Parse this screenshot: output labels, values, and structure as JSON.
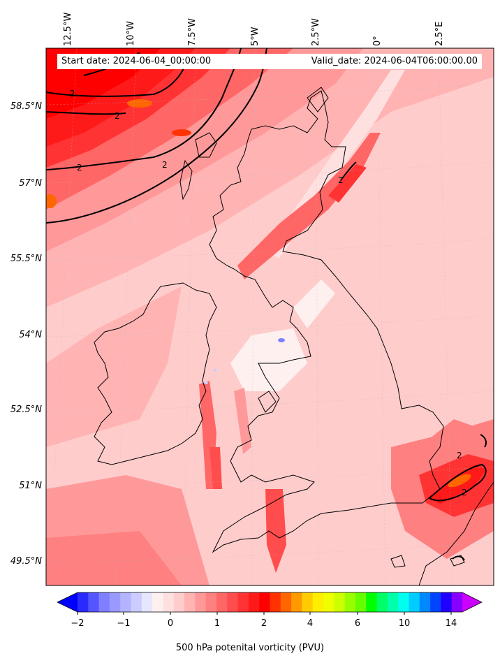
{
  "map": {
    "start_date": "Start date: 2024-06-04_00:00:00",
    "valid_date": "Valid_date: 2024-06-04T06:00:00.00",
    "lon_labels": [
      "12.5°W",
      "10°W",
      "7.5°W",
      "5°W",
      "2.5°W",
      "0°",
      "2.5°E"
    ],
    "lat_labels": [
      "58.5°N",
      "57°N",
      "55.5°N",
      "54°N",
      "52.5°N",
      "51°N",
      "49.5°N"
    ],
    "contour_labels": [
      "2",
      "2",
      "2",
      "2",
      "2",
      "2",
      "2"
    ],
    "variable": "500 hPa potential vorticity",
    "units": "PVU"
  },
  "colorbar": {
    "ticks": [
      "−2",
      "−1",
      "0",
      "1",
      "2",
      "4",
      "6",
      "10",
      "14"
    ],
    "label": "500 hPa potenital vorticity (PVU)",
    "colors": [
      "#0000ff",
      "#2a2aff",
      "#5555ff",
      "#7f7fff",
      "#9999ff",
      "#b3b3ff",
      "#ccccff",
      "#e6e6ff",
      "#fff0f0",
      "#ffe0e0",
      "#ffcccc",
      "#ffb3b3",
      "#ff9999",
      "#ff8080",
      "#ff6666",
      "#ff4d4d",
      "#ff3333",
      "#ff1a1a",
      "#ff0000",
      "#ff3300",
      "#ff6600",
      "#ff9900",
      "#ffcc00",
      "#ffee00",
      "#eeff00",
      "#ccff00",
      "#99ff00",
      "#66ff00",
      "#00ff00",
      "#00ff66",
      "#00ffaa",
      "#00ffee",
      "#00ccff",
      "#0088ff",
      "#0044ff",
      "#2200ff",
      "#8800ff",
      "#cc00ff"
    ]
  }
}
